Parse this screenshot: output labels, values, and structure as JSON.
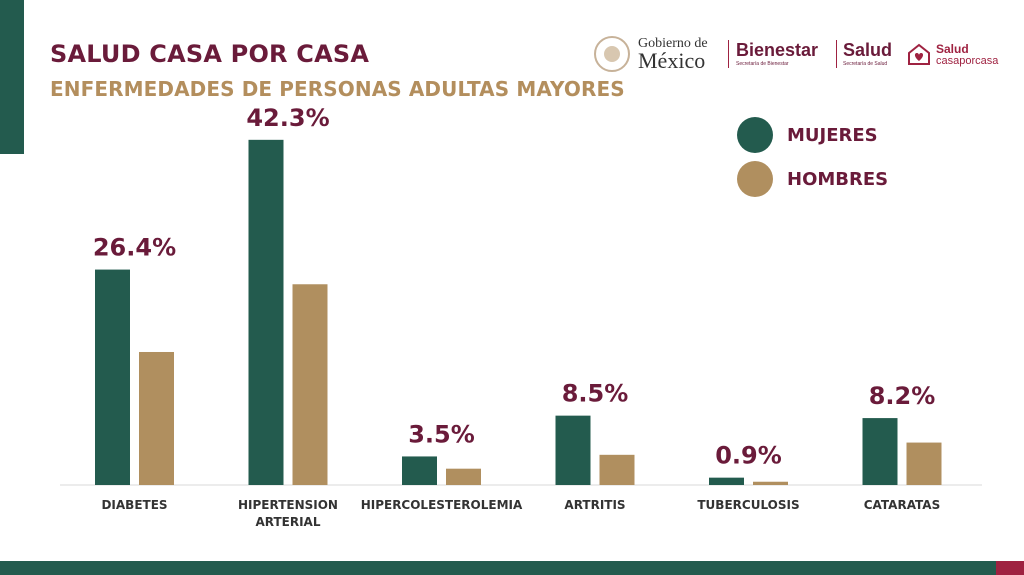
{
  "header": {
    "title": "SALUD CASA POR CASA",
    "subtitle": "ENFERMEDADES DE PERSONAS ADULTAS MAYORES"
  },
  "logos": {
    "gobierno_line1": "Gobierno de",
    "gobierno_line2": "México",
    "bienestar": "Bienestar",
    "bienestar_sub": "Secretaría de Bienestar",
    "salud": "Salud",
    "salud_sub": "Secretaría de Salud",
    "scpc_line1": "Salud",
    "scpc_line2": "casaporcasa"
  },
  "colors": {
    "mujeres": "#235b4e",
    "hombres": "#b08f5f",
    "label": "#6a1b3a"
  },
  "chart_data": {
    "type": "bar",
    "categories": [
      "DIABETES",
      "HIPERTENSION ARTERIAL",
      "HIPERCOLESTEROLEMIA",
      "ARTRITIS",
      "TUBERCULOSIS",
      "CATARATAS"
    ],
    "series": [
      {
        "name": "MUJERES",
        "values": [
          26.4,
          42.3,
          3.5,
          8.5,
          0.9,
          8.2
        ]
      },
      {
        "name": "HOMBRES",
        "values": [
          16.3,
          24.6,
          2.0,
          3.7,
          0.4,
          5.2
        ]
      }
    ],
    "data_labels": [
      "26.4%",
      "42.3%",
      "3.5%",
      "8.5%",
      "0.9%",
      "8.2%"
    ],
    "legend_position": "top-right",
    "grid": false
  }
}
